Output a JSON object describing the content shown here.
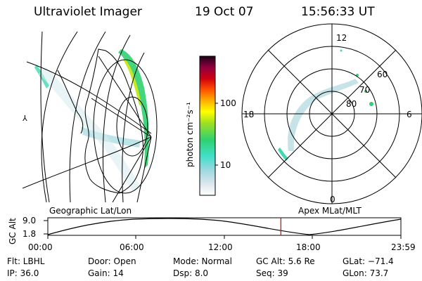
{
  "header": {
    "instrument": "Ultraviolet Imager",
    "date": "19 Oct 07",
    "time": "15:56:33 UT"
  },
  "colorbar": {
    "unit_label": "photon cm⁻²s⁻¹",
    "ticks": [
      "100",
      "10"
    ],
    "stops": [
      "#e8f4f4",
      "#b8e0e4",
      "#40e0c8",
      "#30d070",
      "#a0e020",
      "#ffff00",
      "#ffb000",
      "#ff4000",
      "#d00000",
      "#800040",
      "#200020"
    ]
  },
  "left_panel": {
    "label": "Geographic Lat/Lon",
    "marker": "⅄"
  },
  "right_panel": {
    "label": "Apex MLat/MLT",
    "mlt_labels": {
      "top": "12",
      "left": "18",
      "right": "6",
      "bottom": "0"
    },
    "lat_labels": [
      "60",
      "70",
      "80"
    ]
  },
  "orbit": {
    "axis_label": "GC Alt",
    "y_ticks": [
      "9.0",
      "1.8"
    ],
    "x_ticks": [
      "00:00",
      "06:00",
      "12:00",
      "18:00",
      "23:59"
    ],
    "current_time_fraction": 0.66
  },
  "footer": {
    "flt": "Flt: LBHL",
    "ip": "IP: 36.0",
    "door": "Door: Open",
    "gain": "Gain: 14",
    "mode": "Mode: Normal",
    "dsp": "Dsp:    8.0",
    "gc_alt": "GC Alt: 5.6 Re",
    "seq": "Seq: 39",
    "glat": "GLat:  −71.4",
    "glon": "GLon:   73.7"
  }
}
